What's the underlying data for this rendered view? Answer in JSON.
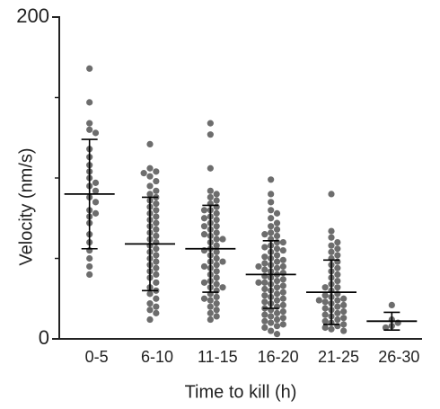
{
  "chart_data": {
    "type": "dotplot",
    "x_label": "Time to kill (h)",
    "y_label": "Velocity (nm/s)",
    "categories": [
      "0-5",
      "6-10",
      "11-15",
      "16-20",
      "21-25",
      "26-30"
    ],
    "color": "#6d6d6d",
    "ylim": [
      0,
      200
    ],
    "yticks": [
      0,
      200
    ],
    "yminor_ticks": [
      50,
      100,
      150
    ],
    "groups": [
      {
        "mean": 90,
        "sd": 34,
        "values": [
          168,
          147,
          134,
          130,
          128,
          118,
          113,
          108,
          104,
          100,
          97,
          95,
          92,
          88,
          85,
          80,
          78,
          76,
          72,
          65,
          60,
          55,
          50,
          45,
          40
        ]
      },
      {
        "mean": 59,
        "sd": 29,
        "values": [
          121,
          106,
          104,
          103,
          101,
          98,
          95,
          92,
          90,
          88,
          86,
          84,
          82,
          80,
          78,
          76,
          74,
          72,
          70,
          68,
          66,
          64,
          62,
          60,
          58,
          56,
          54,
          52,
          50,
          48,
          46,
          44,
          42,
          40,
          38,
          35,
          32,
          30,
          28,
          25,
          22,
          20,
          18,
          16,
          12
        ]
      },
      {
        "mean": 56,
        "sd": 27,
        "values": [
          134,
          127,
          106,
          92,
          90,
          88,
          86,
          84,
          82,
          80,
          78,
          76,
          75,
          74,
          72,
          70,
          68,
          66,
          65,
          64,
          62,
          60,
          58,
          56,
          55,
          54,
          52,
          50,
          48,
          46,
          45,
          44,
          42,
          40,
          38,
          36,
          35,
          34,
          32,
          30,
          28,
          26,
          25,
          24,
          22,
          20,
          18,
          16,
          14,
          12,
          32,
          48,
          62,
          70,
          80
        ]
      },
      {
        "mean": 40,
        "sd": 21,
        "values": [
          99,
          90,
          85,
          80,
          78,
          75,
          72,
          70,
          68,
          66,
          65,
          64,
          62,
          60,
          58,
          57,
          56,
          55,
          54,
          52,
          51,
          50,
          49,
          48,
          47,
          46,
          45,
          44,
          43,
          42,
          41,
          40,
          39,
          38,
          37,
          36,
          35,
          34,
          33,
          32,
          31,
          30,
          29,
          28,
          27,
          26,
          25,
          24,
          23,
          22,
          21,
          20,
          19,
          18,
          17,
          16,
          15,
          14,
          13,
          12,
          11,
          10,
          9,
          8,
          7,
          5,
          3,
          60,
          45,
          35
        ]
      },
      {
        "mean": 29,
        "sd": 20,
        "values": [
          90,
          67,
          63,
          60,
          58,
          56,
          54,
          52,
          50,
          48,
          46,
          44,
          42,
          40,
          38,
          36,
          34,
          32,
          30,
          28,
          27,
          26,
          25,
          24,
          23,
          22,
          21,
          20,
          19,
          18,
          17,
          16,
          15,
          14,
          13,
          12,
          11,
          10,
          9,
          8,
          7,
          6,
          5,
          32,
          24
        ]
      },
      {
        "mean": 11,
        "sd": 5.5,
        "values": [
          21,
          12,
          10,
          8,
          7
        ]
      }
    ]
  }
}
